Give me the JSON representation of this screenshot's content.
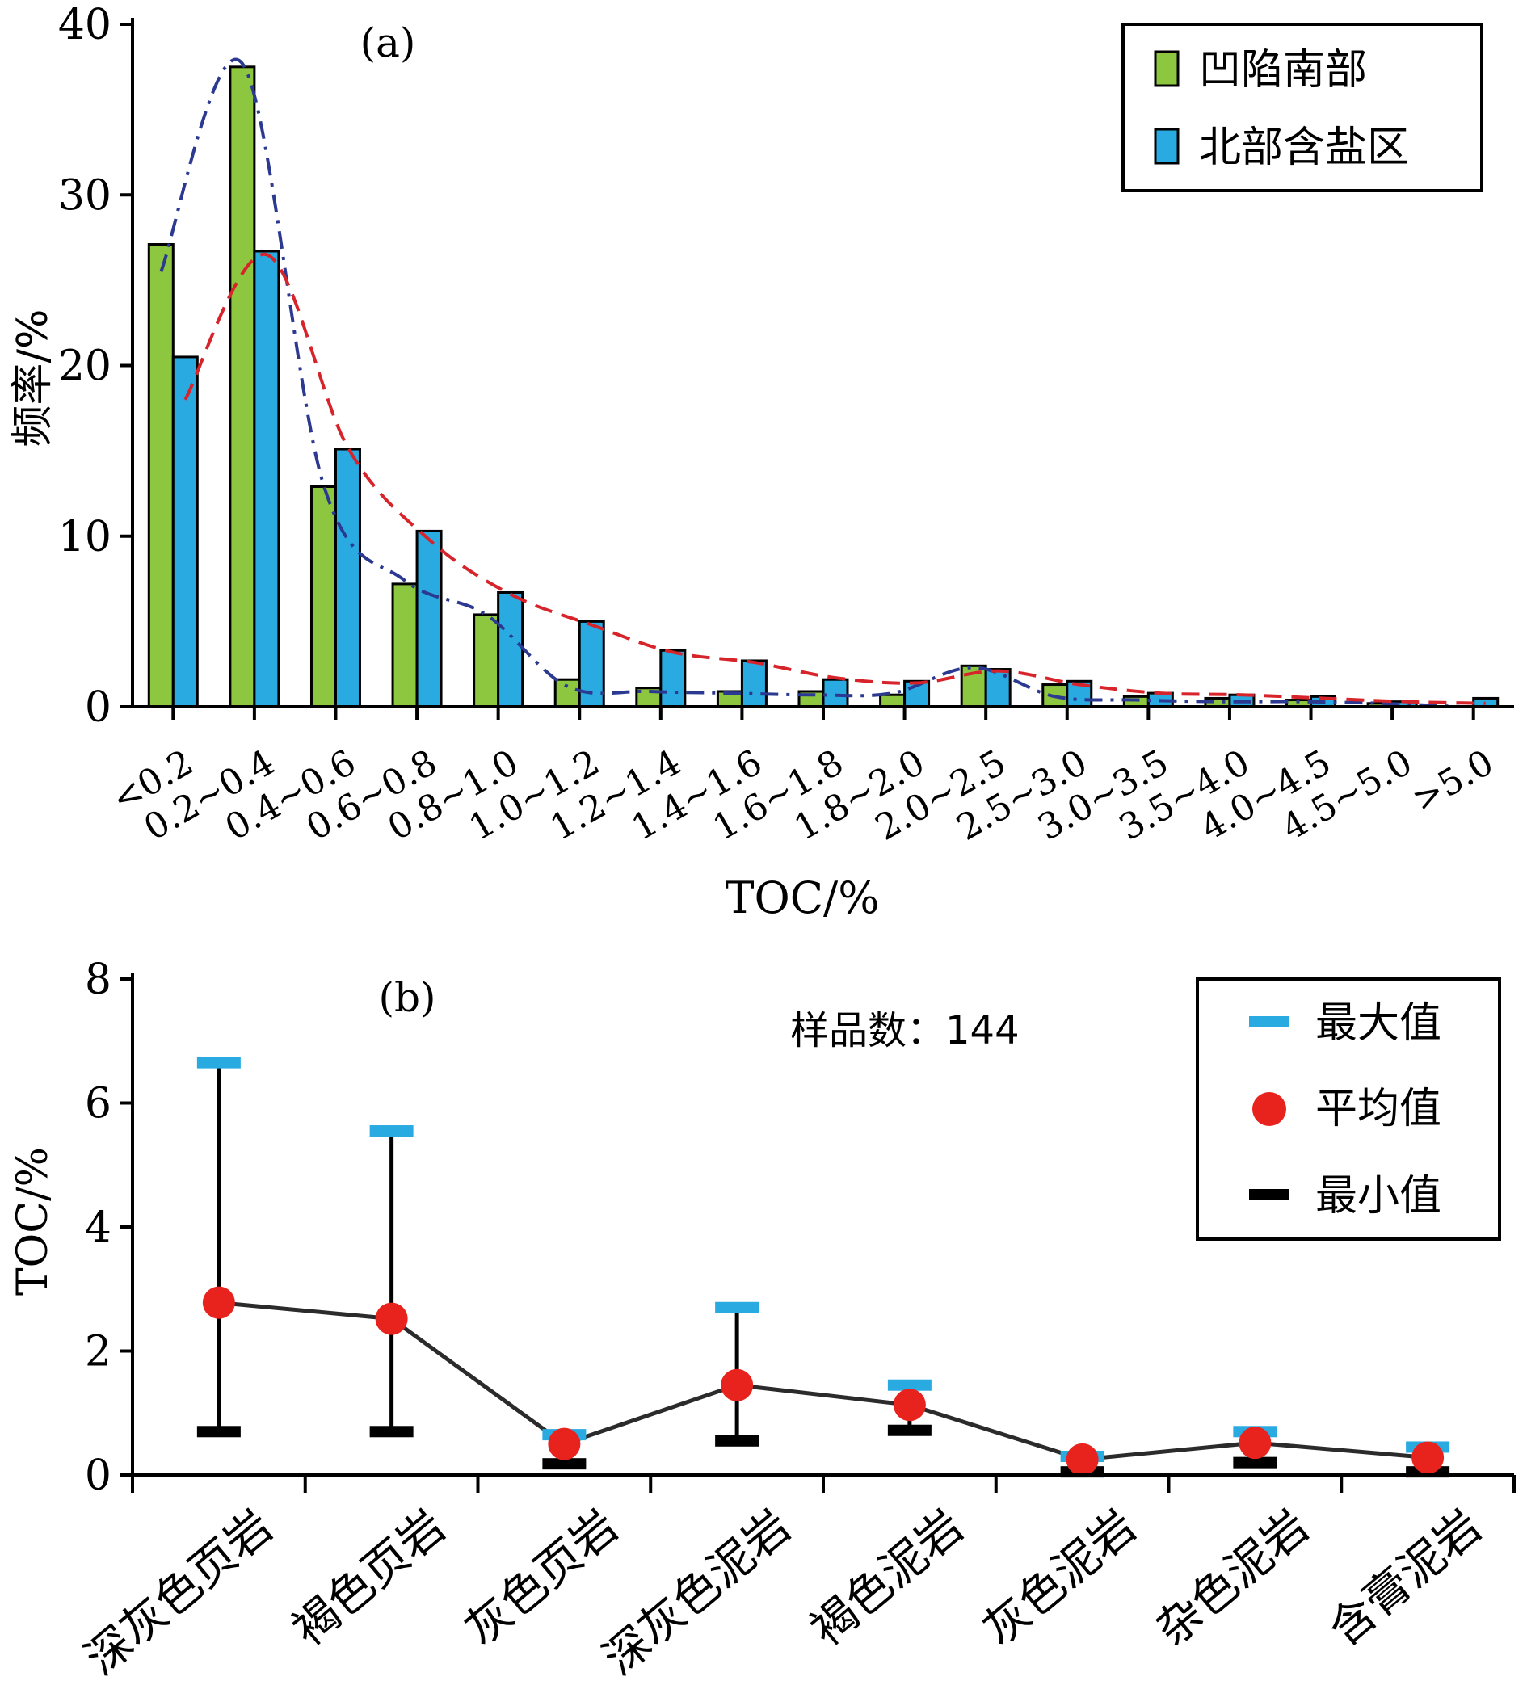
{
  "chart_data": [
    {
      "type": "bar",
      "panel_label": "(a)",
      "xlabel": "TOC/%",
      "ylabel": "频率/%",
      "ylim": [
        0,
        40
      ],
      "yticks": [
        0,
        10,
        20,
        30,
        40
      ],
      "categories": [
        "<0.2",
        "0.2~0.4",
        "0.4~0.6",
        "0.6~0.8",
        "0.8~1.0",
        "1.0~1.2",
        "1.2~1.4",
        "1.4~1.6",
        "1.6~1.8",
        "1.8~2.0",
        "2.0~2.5",
        "2.5~3.0",
        "3.0~3.5",
        "3.5~4.0",
        "4.0~4.5",
        "4.5~5.0",
        ">5.0"
      ],
      "series": [
        {
          "name": "凹陷南部",
          "color": "#8dc63f",
          "values": [
            27.1,
            37.5,
            12.9,
            7.2,
            5.4,
            1.6,
            1.1,
            0.9,
            0.9,
            0.7,
            2.4,
            1.3,
            0.6,
            0.5,
            0.4,
            0.2,
            0.0
          ],
          "trend": {
            "style": "dash-dot",
            "color": "#2b3990",
            "values": [
              25.5,
              37.7,
              13.0,
              7.4,
              5.4,
              1.2,
              0.9,
              0.8,
              0.7,
              0.8,
              2.3,
              0.6,
              0.4,
              0.3,
              0.3,
              0.2,
              0.0
            ]
          }
        },
        {
          "name": "北部含盐区",
          "color": "#29abe2",
          "values": [
            20.5,
            26.7,
            15.1,
            10.3,
            6.7,
            5.0,
            3.3,
            2.7,
            1.6,
            1.5,
            2.2,
            1.5,
            0.8,
            0.7,
            0.6,
            0.3,
            0.5
          ],
          "trend": {
            "style": "dashed",
            "color": "#d7242b",
            "values": [
              18.0,
              26.5,
              15.2,
              9.8,
              6.6,
              4.8,
              3.2,
              2.6,
              1.7,
              1.4,
              2.1,
              1.3,
              0.8,
              0.7,
              0.5,
              0.3,
              0.2
            ]
          }
        }
      ],
      "legend_position": "top-right"
    },
    {
      "type": "range",
      "panel_label": "(b)",
      "annotation": "样品数：144",
      "ylabel": "TOC/%",
      "ylim": [
        0,
        8
      ],
      "yticks": [
        0,
        2,
        4,
        6,
        8
      ],
      "categories": [
        "深灰色页岩",
        "褐色页岩",
        "灰色页岩",
        "深灰色泥岩",
        "褐色泥岩",
        "灰色泥岩",
        "杂色泥岩",
        "含膏泥岩"
      ],
      "series": [
        {
          "name": "最大值",
          "marker": "dash",
          "color": "#29abe2",
          "values": [
            6.65,
            5.55,
            0.65,
            2.7,
            1.45,
            0.3,
            0.7,
            0.45
          ]
        },
        {
          "name": "平均值",
          "marker": "circle",
          "color": "#e8231e",
          "values": [
            2.78,
            2.52,
            0.5,
            1.45,
            1.13,
            0.25,
            0.52,
            0.28
          ]
        },
        {
          "name": "最小值",
          "marker": "dash",
          "color": "#000000",
          "values": [
            0.7,
            0.7,
            0.18,
            0.55,
            0.72,
            0.05,
            0.2,
            0.05
          ]
        }
      ],
      "legend_position": "top-right"
    }
  ]
}
